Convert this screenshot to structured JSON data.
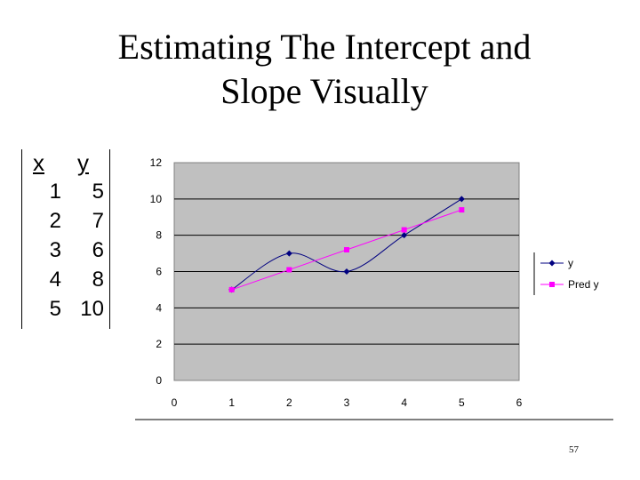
{
  "slide": {
    "title_line1": "Estimating The Intercept and",
    "title_line2": "Slope Visually",
    "page_number": "57"
  },
  "table": {
    "headers": [
      "x",
      "y"
    ],
    "rows": [
      [
        1,
        5
      ],
      [
        2,
        7
      ],
      [
        3,
        6
      ],
      [
        4,
        8
      ],
      [
        5,
        10
      ]
    ]
  },
  "chart_data": {
    "type": "line",
    "title": "",
    "xlabel": "",
    "ylabel": "",
    "xlim": [
      0,
      6
    ],
    "ylim": [
      0,
      12
    ],
    "xticks": [
      0,
      1,
      2,
      3,
      4,
      5,
      6
    ],
    "yticks": [
      0,
      2,
      4,
      6,
      8,
      10,
      12
    ],
    "grid": "horizontal major lines",
    "legend_position": "right",
    "plot_background": "#c0c0c0",
    "series": [
      {
        "name": "y",
        "color": "#000080",
        "marker": "diamond",
        "smooth": true,
        "x": [
          1,
          2,
          3,
          4,
          5
        ],
        "values": [
          5,
          7,
          6,
          8,
          10
        ]
      },
      {
        "name": "Pred y",
        "color": "#ff00ff",
        "marker": "square",
        "smooth": false,
        "x": [
          1,
          2,
          3,
          4,
          5
        ],
        "values": [
          5.0,
          6.1,
          7.2,
          8.3,
          9.4
        ]
      }
    ]
  }
}
